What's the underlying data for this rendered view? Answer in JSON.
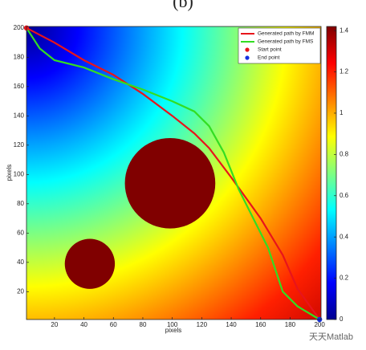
{
  "chart_data": {
    "type": "line",
    "title": "(b)",
    "xlabel": "pixels",
    "ylabel": "pixels",
    "xlim": [
      1,
      201
    ],
    "ylim": [
      1,
      201
    ],
    "xticks": [
      20,
      40,
      60,
      80,
      100,
      120,
      140,
      160,
      180,
      200
    ],
    "yticks": [
      20,
      40,
      60,
      80,
      100,
      120,
      140,
      160,
      180,
      200
    ],
    "series": [
      {
        "name": "Generated path by FMM",
        "color": "#e8141b",
        "mode": "line",
        "x": [
          1,
          20,
          40,
          60,
          80,
          100,
          115,
          125,
          140,
          160,
          175,
          185,
          195,
          200
        ],
        "values": [
          200,
          190,
          178,
          168,
          155,
          140,
          128,
          118,
          98,
          70,
          45,
          22,
          8,
          1
        ]
      },
      {
        "name": "Generated path by FMS",
        "color": "#33dd22",
        "mode": "line",
        "x": [
          1,
          10,
          20,
          40,
          60,
          80,
          100,
          115,
          125,
          135,
          145,
          155,
          165,
          175,
          185,
          200
        ],
        "values": [
          200,
          186,
          178,
          173,
          165,
          158,
          150,
          143,
          133,
          115,
          90,
          70,
          50,
          20,
          10,
          1
        ]
      },
      {
        "name": "Start point",
        "color": "#e8141b",
        "mode": "point",
        "x": [
          1
        ],
        "values": [
          200
        ]
      },
      {
        "name": "End point",
        "color": "#1530e0",
        "mode": "point",
        "x": [
          200
        ],
        "values": [
          1
        ]
      }
    ],
    "obstacles": [
      {
        "x": 98.5,
        "y": 94,
        "r": 30.7,
        "color": "#800000"
      },
      {
        "x": 44,
        "y": 39,
        "r": 17,
        "color": "#800000"
      }
    ],
    "colorbar": {
      "lim": [
        0,
        1.42
      ],
      "ticks": [
        0,
        0.2,
        0.4,
        0.6,
        0.8,
        1,
        1.2,
        1.4
      ]
    },
    "watermark": "天天Matlab"
  }
}
